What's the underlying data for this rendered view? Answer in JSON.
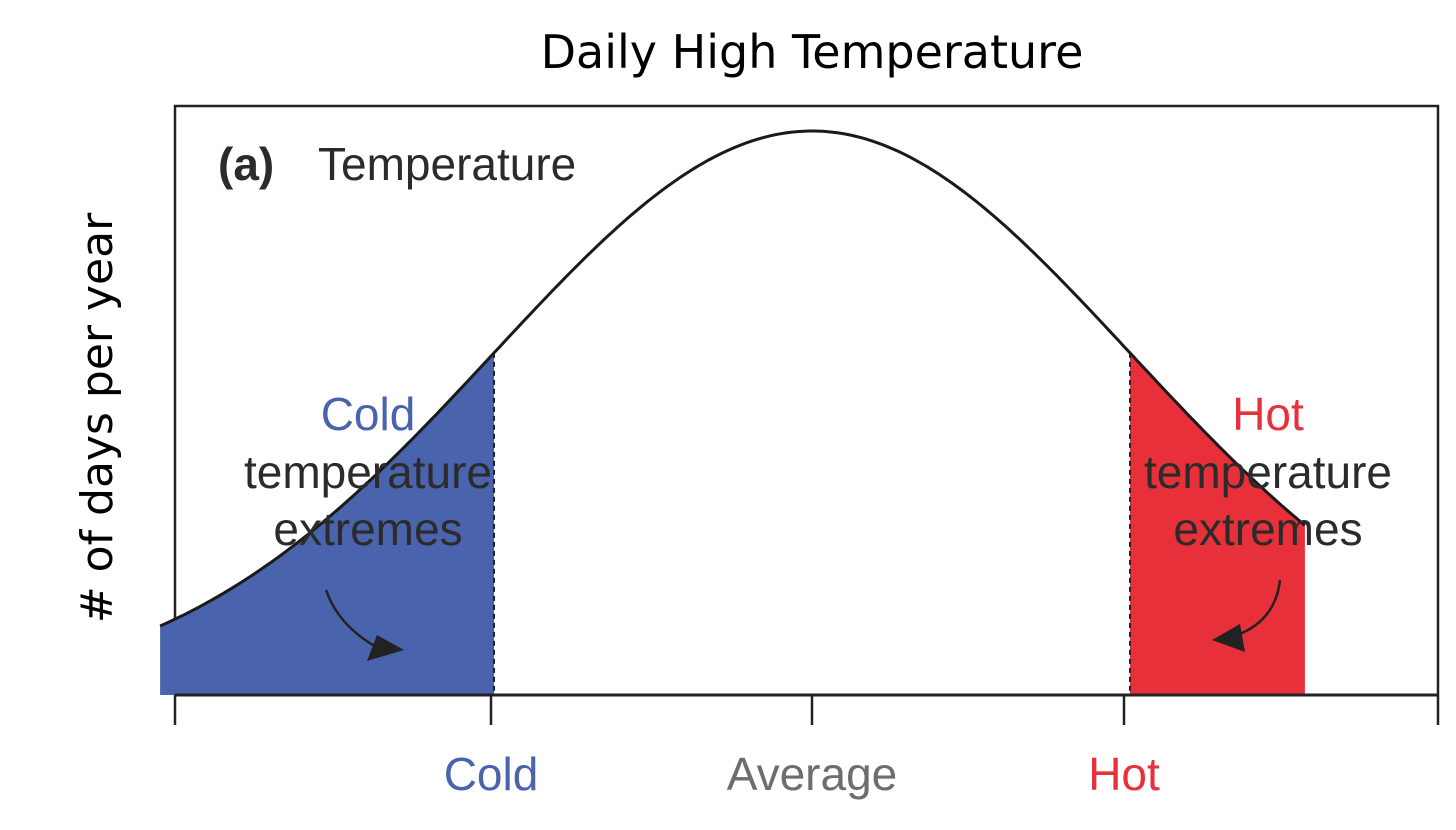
{
  "chart_data": {
    "type": "area",
    "title": "Daily High Temperature",
    "ylabel": "# of days per year",
    "xlabel": "",
    "panel_label": "(a)",
    "panel_title": "Temperature",
    "x_tick_labels": [
      "Cold",
      "Average",
      "Hot"
    ],
    "distribution": {
      "shape": "normal",
      "mean": 0,
      "std_dev": 1,
      "x_range": [
        -2.05,
        1.55
      ],
      "cold_threshold": -1.0,
      "hot_threshold": 1.0
    },
    "regions": [
      {
        "name": "cold",
        "from": -2.05,
        "to": -1.0
      },
      {
        "name": "hot",
        "from": 1.0,
        "to": 1.55
      }
    ],
    "annotations": [
      {
        "id": "cold",
        "lines": [
          "Cold",
          "temperature",
          "extremes"
        ]
      },
      {
        "id": "hot",
        "lines": [
          "Hot",
          "temperature",
          "extremes"
        ]
      }
    ],
    "colors": {
      "cold": "#4a63ad",
      "hot": "#e8303a",
      "curve": "#1a1a1a",
      "text": "#2b2b2b",
      "average": "#6d6d6d"
    }
  }
}
